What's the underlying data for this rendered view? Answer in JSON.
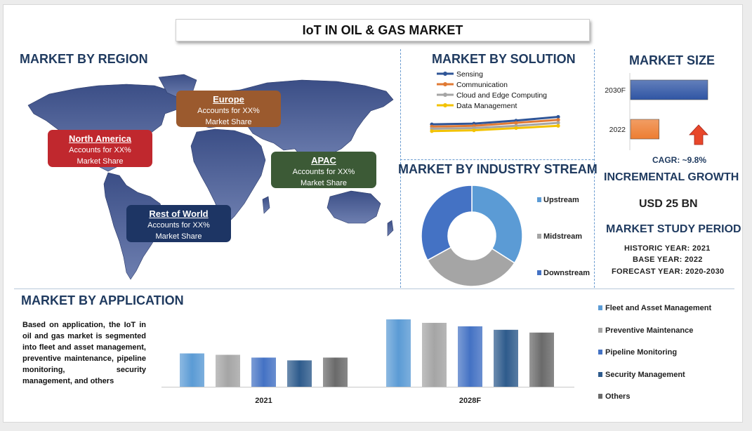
{
  "title": "IoT IN OIL & GAS MARKET",
  "region": {
    "heading": "MARKET BY REGION",
    "callouts": [
      {
        "name": "North America",
        "line1": "Accounts for XX%",
        "line2": "Market Share"
      },
      {
        "name": "Europe",
        "line1": "Accounts for XX%",
        "line2": "Market Share"
      },
      {
        "name": "APAC",
        "line1": "Accounts for XX%",
        "line2": "Market Share"
      },
      {
        "name": "Rest of World",
        "line1": "Accounts for XX%",
        "line2": "Market Share"
      }
    ],
    "colors": {
      "north_america": "#c0282e",
      "europe": "#9b5a2e",
      "apac": "#3c5a36",
      "row": "#1d3564"
    }
  },
  "solution": {
    "heading": "MARKET BY SOLUTION"
  },
  "industry": {
    "heading": "MARKET BY INDUSTRY STREAM"
  },
  "size": {
    "heading": "MARKET SIZE",
    "cagr": "CAGR: ~9.8%",
    "incremental_heading": "INCREMENTAL GROWTH",
    "incremental_value": "USD 25 BN"
  },
  "study": {
    "heading": "MARKET STUDY PERIOD",
    "historic": "HISTORIC YEAR: 2021",
    "base": "BASE YEAR: 2022",
    "forecast": "FORECAST YEAR: 2020-2030"
  },
  "application": {
    "heading": "MARKET BY APPLICATION",
    "description": "Based on application, the IoT in oil and gas market is segmented into fleet and asset management, preventive maintenance, pipeline monitoring, security management, and others"
  },
  "chart_data": [
    {
      "type": "line",
      "x": [
        1,
        2,
        3,
        4
      ],
      "series": [
        {
          "name": "Sensing",
          "values": [
            13,
            14,
            18,
            23
          ],
          "color": "#2f5597"
        },
        {
          "name": "Communication",
          "values": [
            10,
            11,
            15,
            19
          ],
          "color": "#e07a34"
        },
        {
          "name": "Cloud and Edge Computing",
          "values": [
            7,
            8,
            11,
            15
          ],
          "color": "#a5a5a5"
        },
        {
          "name": "Data Management",
          "values": [
            4,
            5,
            8,
            11
          ],
          "color": "#f2c200"
        }
      ],
      "ylim": [
        0,
        30
      ],
      "legend": "top-left",
      "grid": false
    },
    {
      "type": "pie",
      "donut": true,
      "labels": [
        "Upstream",
        "Midstream",
        "Downstream"
      ],
      "values": [
        34,
        33,
        33
      ],
      "colors": [
        "#5b9bd5",
        "#a5a5a5",
        "#4472c4"
      ],
      "legend": "right"
    },
    {
      "type": "bar",
      "orientation": "horizontal",
      "categories": [
        "2030F",
        "2022"
      ],
      "values": [
        100,
        37
      ],
      "colors": [
        "#2f55a4",
        "#ed7d31"
      ],
      "xlim": [
        0,
        100
      ]
    },
    {
      "type": "bar",
      "categories": [
        "2021",
        "2028F"
      ],
      "series": [
        {
          "name": "Fleet and Asset Management",
          "values": [
            48,
            97
          ],
          "color": "#5b9bd5"
        },
        {
          "name": "Preventive Maintenance",
          "values": [
            46,
            92
          ],
          "color": "#a5a5a5"
        },
        {
          "name": "Pipeline Monitoring",
          "values": [
            42,
            87
          ],
          "color": "#4472c4"
        },
        {
          "name": "Security Management",
          "values": [
            38,
            82
          ],
          "color": "#2e5b8c"
        },
        {
          "name": "Others",
          "values": [
            42,
            78
          ],
          "color": "#6a6a6a"
        }
      ],
      "ylim": [
        0,
        100
      ],
      "legend": "right",
      "grid": false
    }
  ]
}
